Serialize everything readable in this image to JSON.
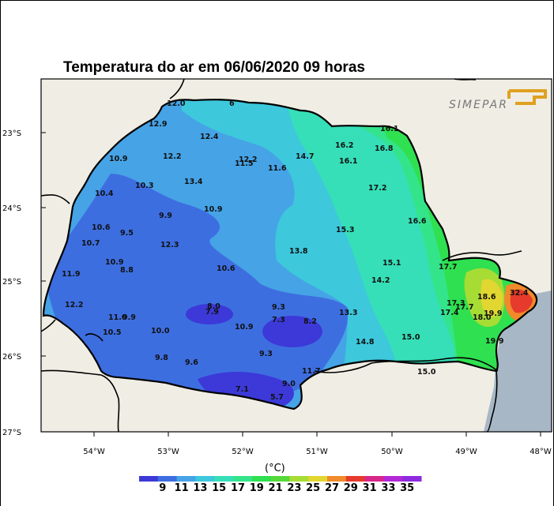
{
  "title": "Temperatura do ar em 06/06/2020 09 horas",
  "logo_text": "SIMEPAR",
  "colors": {
    "map_background": "#f0eee4",
    "ocean": "#a7b7c6",
    "border": "#000000"
  },
  "axes": {
    "latitude_ticks": [
      "23°S",
      "24°S",
      "25°S",
      "26°S",
      "27°S"
    ],
    "longitude_ticks": [
      "54°W",
      "53°W",
      "52°W",
      "51°W",
      "50°W",
      "49°W",
      "48°W"
    ]
  },
  "colorbar": {
    "unit": "(°C)",
    "ticks": [
      "9",
      "11",
      "13",
      "15",
      "17",
      "19",
      "21",
      "23",
      "25",
      "27",
      "29",
      "31",
      "33",
      "35"
    ],
    "colors": [
      "#3c39d8",
      "#3d6ee0",
      "#46a3e6",
      "#3dc8dc",
      "#36dfb8",
      "#34e48a",
      "#2fe050",
      "#56d83a",
      "#a6dc34",
      "#e2d630",
      "#f08a2a",
      "#e63a2c",
      "#d8268a",
      "#b328d8",
      "#8e2ae0"
    ]
  },
  "station_values": [
    {
      "text": "12.9"
    },
    {
      "text": "12.4"
    },
    {
      "text": "10.9"
    },
    {
      "text": "12.2"
    },
    {
      "text": "13.4"
    },
    {
      "text": "11.5"
    },
    {
      "text": "12.2"
    },
    {
      "text": "11.6"
    },
    {
      "text": "14.7"
    },
    {
      "text": "16.2"
    },
    {
      "text": "16.1"
    },
    {
      "text": "16.8"
    },
    {
      "text": "10.3"
    },
    {
      "text": "10.4"
    },
    {
      "text": "17.2"
    },
    {
      "text": "9.9"
    },
    {
      "text": "10.9"
    },
    {
      "text": "16.6"
    },
    {
      "text": "10.6"
    },
    {
      "text": "9.5"
    },
    {
      "text": "15.3"
    },
    {
      "text": "10.7"
    },
    {
      "text": "12.3"
    },
    {
      "text": "13.8"
    },
    {
      "text": "10.9"
    },
    {
      "text": "8.8"
    },
    {
      "text": "10.6"
    },
    {
      "text": "15.1"
    },
    {
      "text": "17.7"
    },
    {
      "text": "11.9"
    },
    {
      "text": "14.2"
    },
    {
      "text": "12.2"
    },
    {
      "text": "8.0"
    },
    {
      "text": "7.9"
    },
    {
      "text": "9.3"
    },
    {
      "text": "11.0"
    },
    {
      "text": "9.9"
    },
    {
      "text": "7.3"
    },
    {
      "text": "8.2"
    },
    {
      "text": "10.9"
    },
    {
      "text": "13.3"
    },
    {
      "text": "17.3"
    },
    {
      "text": "17.7"
    },
    {
      "text": "17.4"
    },
    {
      "text": "18.6"
    },
    {
      "text": "18.0"
    },
    {
      "text": "19.9"
    },
    {
      "text": "32.4"
    },
    {
      "text": "10.5"
    },
    {
      "text": "10.0"
    },
    {
      "text": "15.0"
    },
    {
      "text": "14.8"
    },
    {
      "text": "19.9"
    },
    {
      "text": "9.8"
    },
    {
      "text": "9.6"
    },
    {
      "text": "9.3"
    },
    {
      "text": "11.7"
    },
    {
      "text": "15.0"
    },
    {
      "text": "9.0"
    },
    {
      "text": "7.1"
    },
    {
      "text": "5.7"
    },
    {
      "text": "16.1"
    },
    {
      "text": "12.0"
    },
    {
      "text": "6"
    }
  ]
}
